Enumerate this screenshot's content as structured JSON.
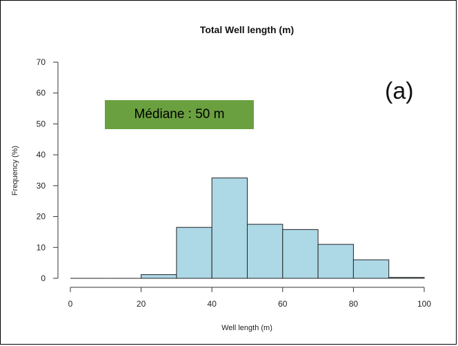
{
  "chart_data": {
    "type": "bar",
    "title": "Total Well length (m)",
    "xlabel": "Well length (m)",
    "ylabel": "Frequency (%)",
    "bins": [
      [
        0,
        10
      ],
      [
        10,
        20
      ],
      [
        20,
        30
      ],
      [
        30,
        40
      ],
      [
        40,
        50
      ],
      [
        50,
        60
      ],
      [
        60,
        70
      ],
      [
        70,
        80
      ],
      [
        80,
        90
      ],
      [
        90,
        100
      ]
    ],
    "values": [
      0,
      0,
      1.2,
      16.5,
      32.5,
      17.5,
      15.8,
      11,
      6,
      0.3
    ],
    "xlim": [
      0,
      100
    ],
    "ylim": [
      0,
      70
    ],
    "xticks": [
      0,
      20,
      40,
      60,
      80,
      100
    ],
    "yticks": [
      0,
      10,
      20,
      30,
      40,
      50,
      60,
      70
    ],
    "bar_color": "#add8e6",
    "grid": false
  },
  "annotations": {
    "panel_label": "(a)",
    "median_label": "Médiane : 50 m",
    "median_color": "#6aa040"
  }
}
